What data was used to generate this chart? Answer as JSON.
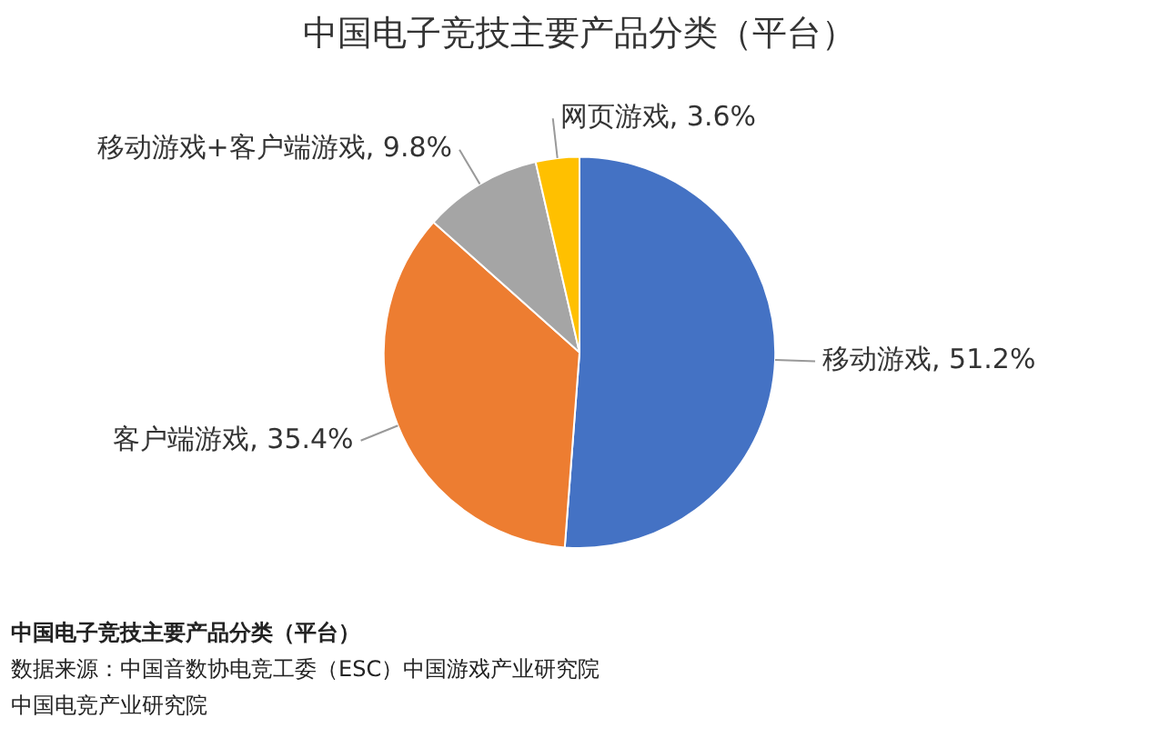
{
  "chart_data": {
    "type": "pie",
    "title": "中国电子竞技主要产品分类（平台）",
    "categories": [
      "移动游戏",
      "客户端游戏",
      "移动游戏+客户端游戏",
      "网页游戏"
    ],
    "values": [
      51.2,
      35.4,
      9.8,
      3.6
    ],
    "colors": [
      "#4472c4",
      "#ed7d31",
      "#a5a5a5",
      "#ffc000"
    ],
    "value_labels": [
      "51.2%",
      "35.4%",
      "9.8%",
      "3.6%"
    ],
    "legend": false,
    "annotations": [
      "中国电子竞技主要产品分类（平台）",
      "数据来源：中国音数协电竞工委（ESC）中国游戏产业研究院",
      "中国电竞产业研究院"
    ]
  }
}
